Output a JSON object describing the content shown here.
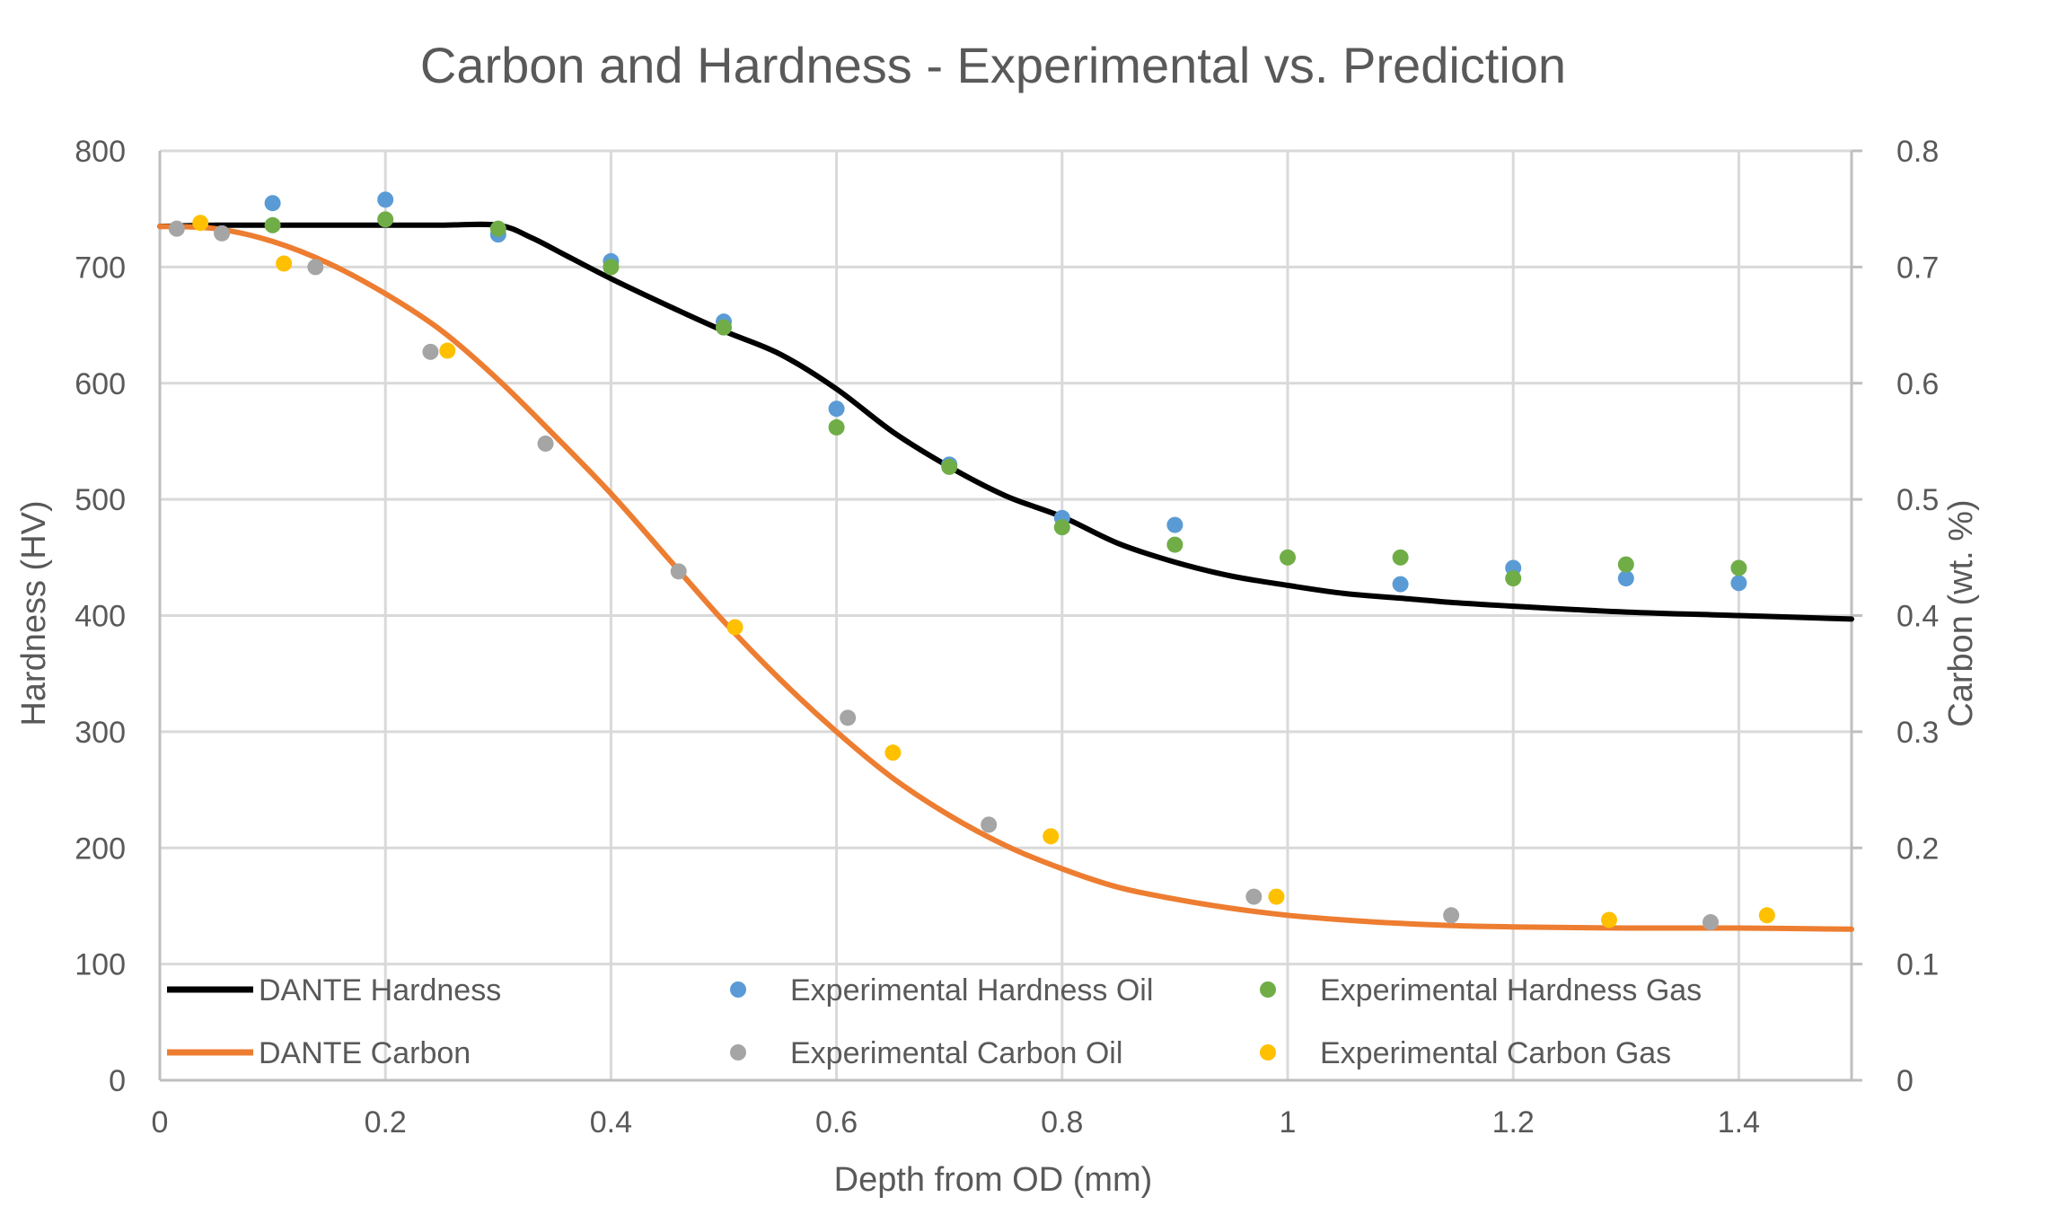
{
  "chart_data": {
    "type": "scatter",
    "title": "Carbon and Hardness - Experimental vs. Prediction",
    "xlabel": "Depth from OD (mm)",
    "ylabel": "Hardness (HV)",
    "y2label": "Carbon (wt. %)",
    "xlim": [
      0,
      1.5
    ],
    "ylim": [
      0,
      800
    ],
    "y2lim": [
      0,
      0.8
    ],
    "xticks": [
      0,
      0.2,
      0.4,
      0.6,
      0.8,
      1,
      1.2,
      1.4
    ],
    "xtick_labels": [
      "0",
      "0.2",
      "0.4",
      "0.6",
      "0.8",
      "1",
      "1.2",
      "1.4"
    ],
    "yticks": [
      0,
      100,
      200,
      300,
      400,
      500,
      600,
      700,
      800
    ],
    "ytick_labels": [
      "0",
      "100",
      "200",
      "300",
      "400",
      "500",
      "600",
      "700",
      "800"
    ],
    "y2ticks": [
      0,
      0.1,
      0.2,
      0.3,
      0.4,
      0.5,
      0.6,
      0.7,
      0.8
    ],
    "y2tick_labels": [
      "0",
      "0.1",
      "0.2",
      "0.3",
      "0.4",
      "0.5",
      "0.6",
      "0.7",
      "0.8"
    ],
    "grid": true,
    "legend_position": "bottom-inside",
    "series": [
      {
        "name": "DANTE Hardness",
        "kind": "line",
        "axis": "y",
        "color": "#000000",
        "x": [
          0,
          0.05,
          0.1,
          0.15,
          0.2,
          0.25,
          0.3,
          0.33,
          0.36,
          0.4,
          0.45,
          0.5,
          0.55,
          0.6,
          0.65,
          0.7,
          0.75,
          0.8,
          0.85,
          0.9,
          0.95,
          1.0,
          1.05,
          1.1,
          1.15,
          1.2,
          1.3,
          1.4,
          1.5
        ],
        "y": [
          735,
          736,
          736,
          736,
          736,
          736,
          736,
          725,
          710,
          690,
          667,
          645,
          625,
          595,
          558,
          528,
          503,
          485,
          462,
          446,
          434,
          426,
          419,
          415,
          411,
          408,
          403,
          400,
          397
        ]
      },
      {
        "name": "DANTE Carbon",
        "kind": "line",
        "axis": "y2",
        "color": "#ed7d31",
        "x": [
          0,
          0.05,
          0.1,
          0.15,
          0.2,
          0.25,
          0.3,
          0.35,
          0.4,
          0.45,
          0.5,
          0.55,
          0.6,
          0.65,
          0.7,
          0.75,
          0.8,
          0.85,
          0.9,
          0.95,
          1.0,
          1.05,
          1.1,
          1.15,
          1.2,
          1.3,
          1.4,
          1.5
        ],
        "y": [
          0.735,
          0.733,
          0.722,
          0.703,
          0.677,
          0.645,
          0.603,
          0.555,
          0.505,
          0.45,
          0.395,
          0.345,
          0.3,
          0.26,
          0.228,
          0.202,
          0.182,
          0.166,
          0.156,
          0.148,
          0.142,
          0.138,
          0.135,
          0.133,
          0.132,
          0.131,
          0.131,
          0.13
        ]
      },
      {
        "name": "Experimental Hardness Oil",
        "kind": "scatter",
        "axis": "y",
        "color": "#5b9bd5",
        "x": [
          0.1,
          0.2,
          0.3,
          0.4,
          0.5,
          0.6,
          0.7,
          0.8,
          0.9,
          1.1,
          1.2,
          1.3,
          1.4
        ],
        "y": [
          755,
          758,
          728,
          705,
          653,
          578,
          530,
          484,
          478,
          427,
          441,
          432,
          428
        ]
      },
      {
        "name": "Experimental Hardness Gas",
        "kind": "scatter",
        "axis": "y",
        "color": "#70ad47",
        "x": [
          0.1,
          0.2,
          0.3,
          0.4,
          0.5,
          0.6,
          0.7,
          0.8,
          0.9,
          1.0,
          1.1,
          1.2,
          1.3,
          1.4
        ],
        "y": [
          736,
          741,
          733,
          700,
          648,
          562,
          528,
          476,
          461,
          450,
          450,
          432,
          444,
          441
        ]
      },
      {
        "name": "Experimental Carbon Oil",
        "kind": "scatter",
        "axis": "y2",
        "color": "#a5a5a5",
        "x": [
          0.015,
          0.055,
          0.138,
          0.24,
          0.342,
          0.46,
          0.61,
          0.735,
          0.97,
          1.145,
          1.375
        ],
        "y": [
          0.733,
          0.729,
          0.7,
          0.627,
          0.548,
          0.438,
          0.312,
          0.22,
          0.158,
          0.142,
          0.136
        ]
      },
      {
        "name": "Experimental Carbon Gas",
        "kind": "scatter",
        "axis": "y2",
        "color": "#ffc000",
        "x": [
          0.036,
          0.11,
          0.255,
          0.51,
          0.65,
          0.79,
          0.99,
          1.285,
          1.425
        ],
        "y": [
          0.738,
          0.703,
          0.628,
          0.39,
          0.282,
          0.21,
          0.158,
          0.138,
          0.142
        ]
      }
    ]
  }
}
